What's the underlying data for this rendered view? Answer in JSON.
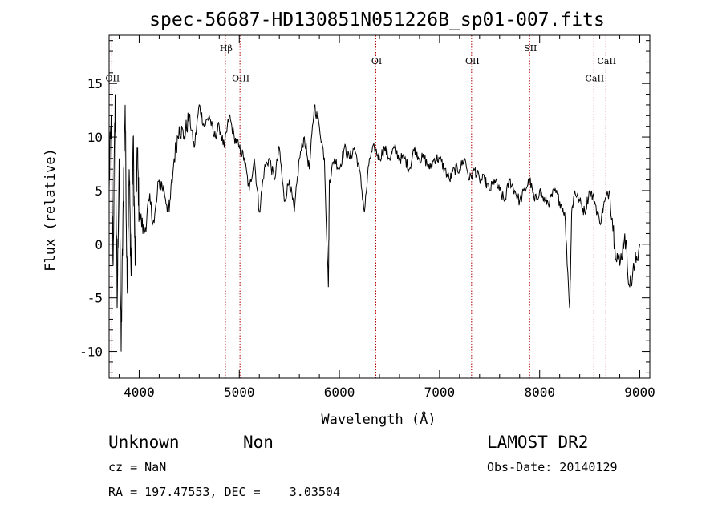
{
  "colors": {
    "axis": "#000000",
    "spectrum": "#000000",
    "marker_line": "#b00000"
  },
  "chart_data": {
    "type": "line",
    "title": "spec-56687-HD130851N051226B_sp01-007.fits",
    "xlabel": "Wavelength (Å)",
    "ylabel": "Flux (relative)",
    "xlim": [
      3700,
      9100
    ],
    "ylim": [
      -12.5,
      19.5
    ],
    "xticks": [
      4000,
      5000,
      6000,
      7000,
      8000,
      9000
    ],
    "yticks": [
      -10,
      -5,
      0,
      5,
      10,
      15
    ],
    "grid": false,
    "series": [
      {
        "x": [
          3700,
          3720,
          3740,
          3760,
          3780,
          3800,
          3820,
          3840,
          3860,
          3880,
          3900,
          3920,
          3940,
          3960,
          3980,
          4000,
          4050,
          4100,
          4150,
          4200,
          4250,
          4300,
          4350,
          4400,
          4450,
          4500,
          4550,
          4600,
          4650,
          4700,
          4750,
          4800,
          4850,
          4900,
          4950,
          5000,
          5050,
          5100,
          5150,
          5200,
          5250,
          5300,
          5350,
          5400,
          5450,
          5500,
          5550,
          5600,
          5650,
          5700,
          5750,
          5800,
          5850,
          5890,
          5900,
          5950,
          6000,
          6050,
          6100,
          6150,
          6200,
          6250,
          6300,
          6350,
          6400,
          6450,
          6500,
          6550,
          6600,
          6650,
          6700,
          6750,
          6800,
          6850,
          6900,
          6950,
          7000,
          7050,
          7100,
          7150,
          7200,
          7250,
          7300,
          7350,
          7400,
          7450,
          7500,
          7550,
          7600,
          7650,
          7700,
          7750,
          7800,
          7850,
          7900,
          7950,
          8000,
          8050,
          8100,
          8150,
          8200,
          8250,
          8300,
          8320,
          8350,
          8400,
          8450,
          8500,
          8550,
          8600,
          8650,
          8700,
          8750,
          8800,
          8850,
          8900,
          8950,
          9000
        ],
        "y": [
          5,
          12,
          -2,
          14,
          -6,
          8,
          -10,
          4,
          13,
          -4,
          7,
          -3,
          10,
          -2,
          9,
          3,
          1,
          4,
          2,
          6,
          5,
          3,
          8,
          11,
          10,
          12,
          9,
          13,
          11,
          12,
          10,
          11,
          9,
          12,
          10,
          9,
          8,
          5,
          8,
          3,
          7,
          8,
          6,
          9,
          4,
          6,
          3,
          8,
          10,
          7,
          13,
          11,
          8,
          -4,
          6,
          8,
          7,
          9,
          8,
          9,
          7,
          3,
          8,
          9,
          8,
          9,
          8,
          9,
          8,
          8,
          7,
          9,
          8,
          8,
          7,
          8,
          8,
          7,
          6,
          7,
          7,
          8,
          6,
          7,
          6,
          6,
          5,
          6,
          5,
          4,
          6,
          5,
          4,
          5,
          6,
          4,
          5,
          4,
          4,
          5,
          4,
          3,
          -6,
          3,
          5,
          4,
          3,
          5,
          4,
          2,
          4,
          5,
          0,
          -2,
          1,
          -4,
          -2,
          0
        ]
      }
    ],
    "line_markers": [
      {
        "label": "OII",
        "x": 3727,
        "label_y": 15.2
      },
      {
        "label": "Hβ",
        "x": 4861,
        "label_y": 18.0
      },
      {
        "label": "OIII",
        "x": 5007,
        "label_y": 15.2
      },
      {
        "label": "OI",
        "x": 6364,
        "label_y": 16.8
      },
      {
        "label": "OII",
        "x": 7320,
        "label_y": 16.8
      },
      {
        "label": "SII",
        "x": 7900,
        "label_y": 18.0
      },
      {
        "label": "CaII",
        "x": 8542,
        "label_y": 15.2
      },
      {
        "label": "CaII",
        "x": 8662,
        "label_y": 16.8
      }
    ]
  },
  "info": {
    "class": "Unknown",
    "subclass": "Non",
    "survey": "LAMOST DR2",
    "cz": "cz = NaN",
    "obs_date": "Obs-Date: 20140129",
    "coords": "RA = 197.47553, DEC =    3.03504"
  }
}
